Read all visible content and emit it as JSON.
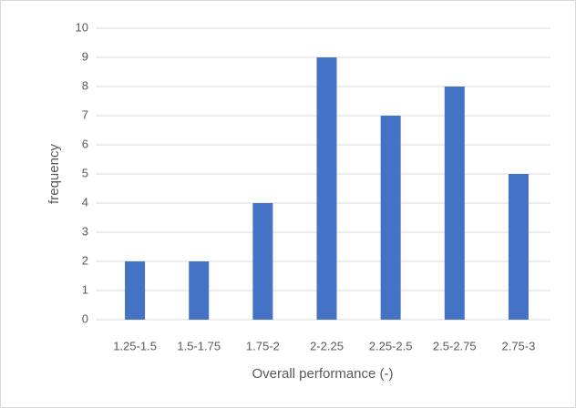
{
  "chart_data": {
    "type": "bar",
    "categories": [
      "1.25-1.5",
      "1.5-1.75",
      "1.75-2",
      "2-2.25",
      "2.25-2.5",
      "2.5-2.75",
      "2.75-3"
    ],
    "values": [
      2,
      2,
      4,
      9,
      7,
      8,
      5
    ],
    "color": "#4472c4",
    "xlabel": "Overall performance (-)",
    "ylabel": "frequency",
    "ylim": [
      0,
      10
    ],
    "yticks": [
      0,
      1,
      2,
      3,
      4,
      5,
      6,
      7,
      8,
      9,
      10
    ],
    "grid": true
  }
}
